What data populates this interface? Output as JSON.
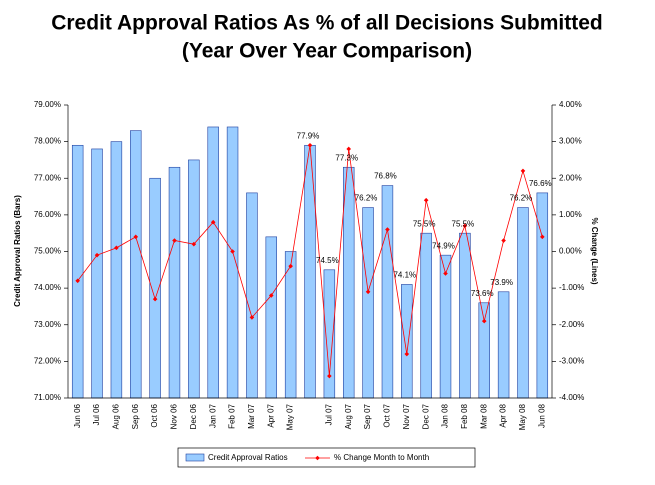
{
  "chart_data": {
    "type": "bar-line",
    "title": "Credit Approval Ratios As % of all Decisions Submitted",
    "subtitle": "(Year Over Year Comparison)",
    "y_label": "Credit Approval Ratios (Bars)",
    "y2_label": "% Change (Lines)",
    "categories": [
      "Jun 06",
      "Jul 06",
      "Aug 06",
      "Sep 06",
      "Oct 06",
      "Nov 06",
      "Dec 06",
      "Jan 07",
      "Feb 07",
      "Mar 07",
      "Apr 07",
      "May 07",
      null,
      "Jul 07",
      "Aug 07",
      "Sep 07",
      "Oct 07",
      "Nov 07",
      "Dec 07",
      "Jan 08",
      "Feb 08",
      "Mar 08",
      "Apr 08",
      "May 08",
      "Jun 08"
    ],
    "series": [
      {
        "name": "Credit Approval Ratios",
        "type": "bar",
        "color": "#99ccff",
        "edge": "#1f3f9f",
        "values": [
          77.9,
          77.8,
          78.0,
          78.3,
          77.0,
          77.3,
          77.5,
          78.4,
          78.4,
          76.6,
          75.4,
          75.0,
          77.9,
          74.5,
          77.3,
          76.2,
          76.8,
          74.1,
          75.5,
          74.9,
          75.5,
          73.6,
          73.9,
          76.2,
          76.6
        ],
        "value_labels": [
          null,
          null,
          null,
          null,
          null,
          null,
          null,
          null,
          null,
          null,
          null,
          null,
          "77.9%",
          "74.5%",
          "77.3%",
          "76.2%",
          "76.8%",
          "74.1%",
          "75.5%",
          "74.9%",
          "75.5%",
          "73.6%",
          "73.9%",
          "76.2%",
          "76.6%"
        ]
      },
      {
        "name": "% Change Month to Month",
        "type": "line",
        "axis": "y2",
        "color": "#ff0000",
        "values": [
          -0.8,
          -0.1,
          0.1,
          0.4,
          -1.3,
          0.3,
          0.2,
          0.8,
          0.0,
          -1.8,
          -1.2,
          -0.4,
          2.9,
          -3.4,
          2.8,
          -1.1,
          0.6,
          -2.8,
          1.4,
          -0.6,
          0.7,
          -1.9,
          0.3,
          2.2,
          0.4
        ]
      }
    ],
    "ylim": [
      71,
      79
    ],
    "yticks": [
      {
        "value": 71,
        "label": "71.00%"
      },
      {
        "value": 72,
        "label": "72.00%"
      },
      {
        "value": 73,
        "label": "73.00%"
      },
      {
        "value": 74,
        "label": "74.00%"
      },
      {
        "value": 75,
        "label": "75.00%"
      },
      {
        "value": 76,
        "label": "76.00%"
      },
      {
        "value": 77,
        "label": "77.00%"
      },
      {
        "value": 78,
        "label": "78.00%"
      },
      {
        "value": 79,
        "label": "79.00%"
      }
    ],
    "y2lim": [
      -4,
      4
    ],
    "y2ticks": [
      {
        "value": -4,
        "label": "-4.00%"
      },
      {
        "value": -3,
        "label": "-3.00%"
      },
      {
        "value": -2,
        "label": "-2.00%"
      },
      {
        "value": -1,
        "label": "-1.00%"
      },
      {
        "value": 0,
        "label": "0.00%"
      },
      {
        "value": 1,
        "label": "1.00%"
      },
      {
        "value": 2,
        "label": "2.00%"
      },
      {
        "value": 3,
        "label": "3.00%"
      },
      {
        "value": 4,
        "label": "4.00%"
      }
    ],
    "legend": "bottom"
  }
}
